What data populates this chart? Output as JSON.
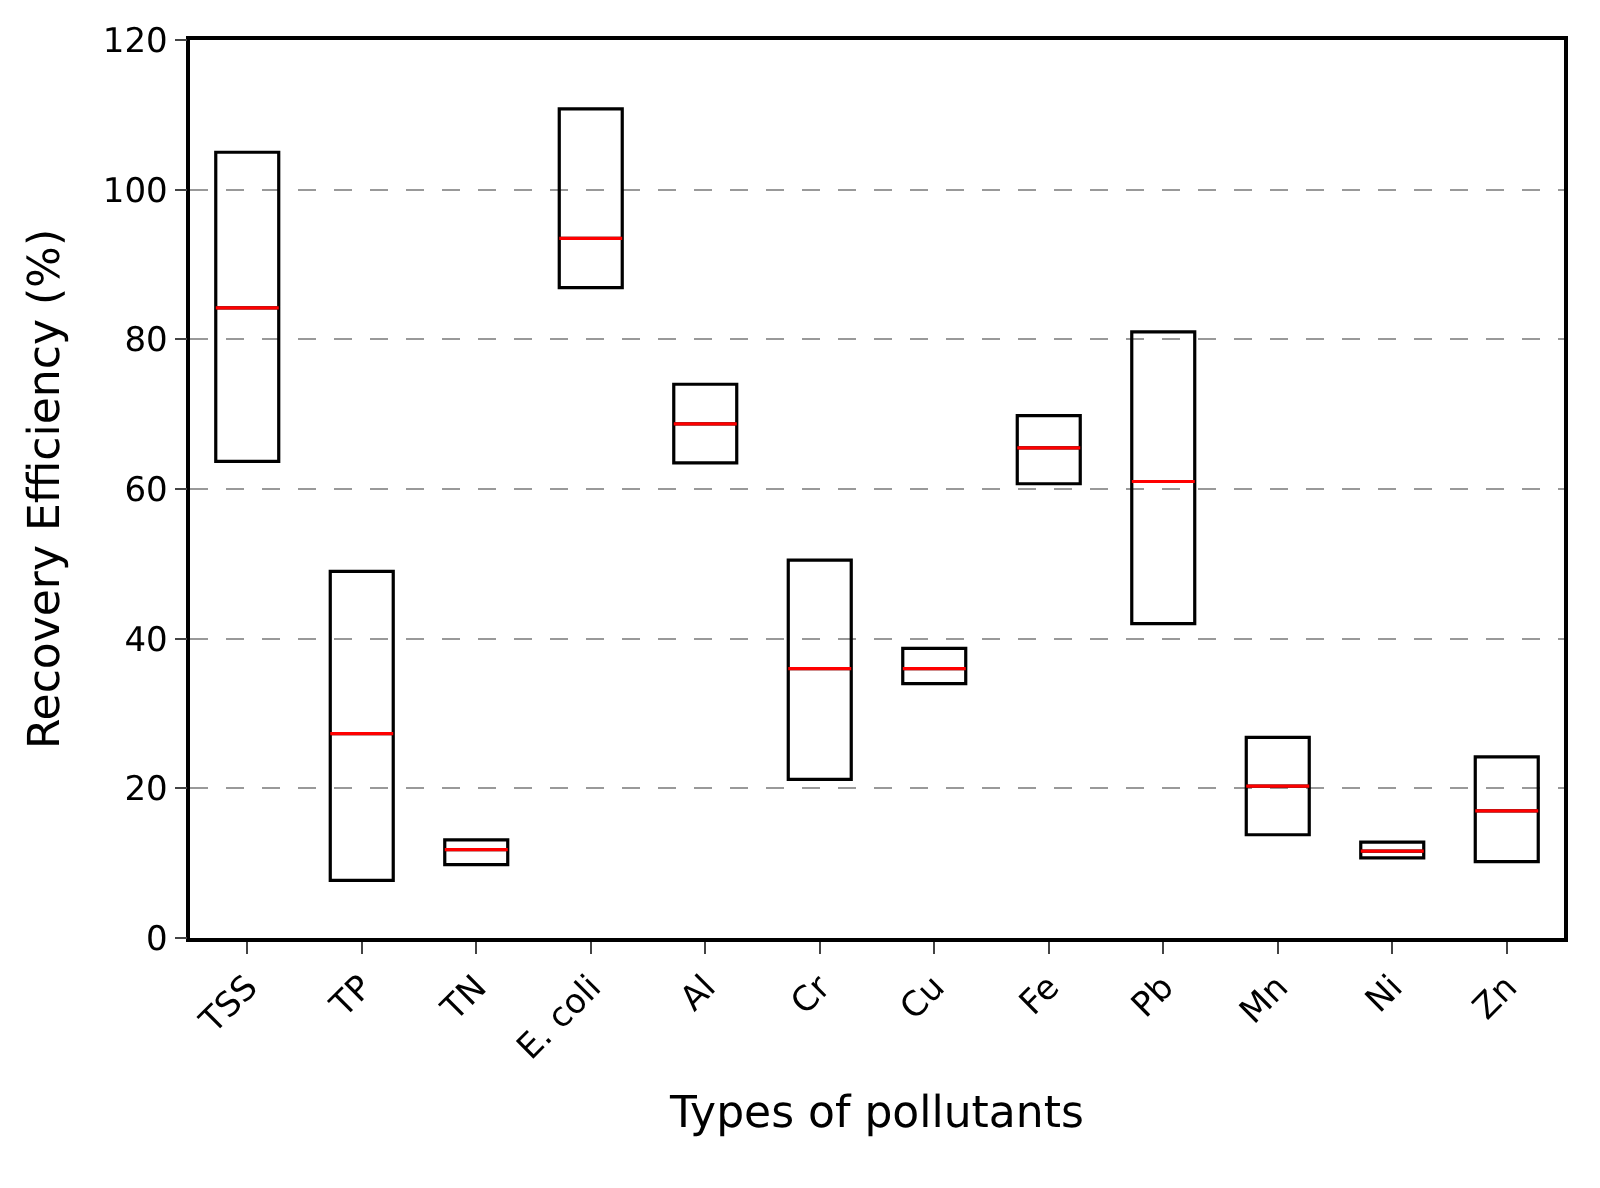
{
  "chart_data": {
    "type": "box",
    "xlabel": "Types of pollutants",
    "ylabel": "Recovery Efficiency (%)",
    "categories": [
      "TSS",
      "TP",
      "TN",
      "E. coli",
      "Al",
      "Cr",
      "Cu",
      "Fe",
      "Pb",
      "Mn",
      "Ni",
      "Zn"
    ],
    "boxes": [
      {
        "low": 63.7,
        "q1": 63.7,
        "median": 84.2,
        "q3": 105.0,
        "high": 105.0
      },
      {
        "low": 7.7,
        "q1": 7.7,
        "median": 27.3,
        "q3": 49.0,
        "high": 49.0
      },
      {
        "low": 9.8,
        "q1": 9.8,
        "median": 11.8,
        "q3": 13.1,
        "high": 13.1
      },
      {
        "low": 86.9,
        "q1": 86.9,
        "median": 93.5,
        "q3": 110.8,
        "high": 110.8
      },
      {
        "low": 63.5,
        "q1": 63.5,
        "median": 68.7,
        "q3": 74.0,
        "high": 74.0
      },
      {
        "low": 21.2,
        "q1": 21.2,
        "median": 36.0,
        "q3": 50.5,
        "high": 50.5
      },
      {
        "low": 34.0,
        "q1": 34.0,
        "median": 36.0,
        "q3": 38.7,
        "high": 38.7
      },
      {
        "low": 60.7,
        "q1": 60.7,
        "median": 65.5,
        "q3": 69.8,
        "high": 69.8
      },
      {
        "low": 42.0,
        "q1": 42.0,
        "median": 61.0,
        "q3": 81.0,
        "high": 81.0
      },
      {
        "low": 13.8,
        "q1": 13.8,
        "median": 20.3,
        "q3": 26.8,
        "high": 26.8
      },
      {
        "low": 10.7,
        "q1": 10.7,
        "median": 11.6,
        "q3": 12.8,
        "high": 12.8
      },
      {
        "low": 10.2,
        "q1": 10.2,
        "median": 17.0,
        "q3": 24.2,
        "high": 24.2
      }
    ],
    "color": "#000000",
    "ylim": [
      0,
      120
    ],
    "yticks": [
      0,
      20,
      40,
      60,
      80,
      100,
      120
    ],
    "grid": "y"
  }
}
